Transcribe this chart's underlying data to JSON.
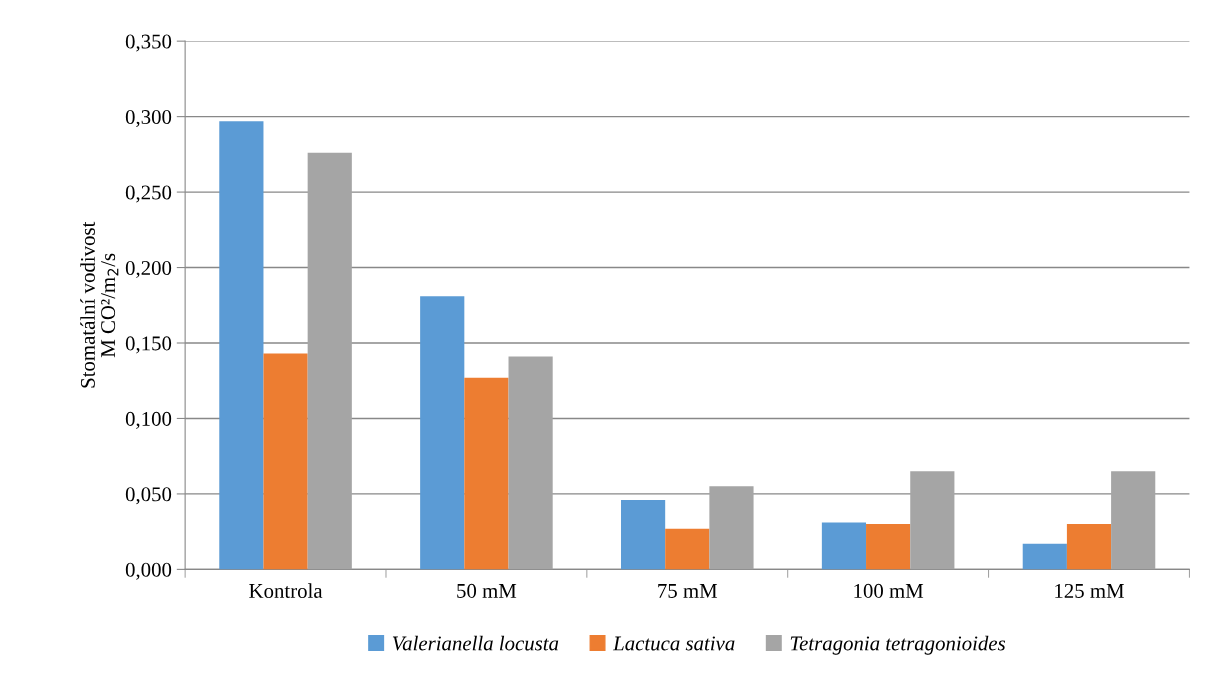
{
  "chart_data": {
    "type": "bar",
    "ylabel": "Stomatální vodivost\nM CO²/m$_{2}$/s",
    "categories": [
      "Kontrola",
      "50 mM",
      "75 mM",
      "100 mM",
      "125 mM"
    ],
    "series": [
      {
        "name": "Valerianella locusta",
        "color": "#5b9bd5",
        "values": [
          0.297,
          0.181,
          0.046,
          0.031,
          0.017
        ]
      },
      {
        "name": "Lactuca sativa",
        "color": "#ed7d31",
        "values": [
          0.143,
          0.127,
          0.027,
          0.03,
          0.03
        ]
      },
      {
        "name": "Tetragonia tetragonioides",
        "color": "#a5a5a5",
        "values": [
          0.276,
          0.141,
          0.055,
          0.065,
          0.065
        ]
      }
    ],
    "ylim": [
      0,
      0.35
    ],
    "yticks": [
      {
        "value": 0,
        "label": "0,000"
      },
      {
        "value": 0.05,
        "label": "0,050"
      },
      {
        "value": 0.1,
        "label": "0,100"
      },
      {
        "value": 0.15,
        "label": "0,150"
      },
      {
        "value": 0.2,
        "label": "0,200"
      },
      {
        "value": 0.25,
        "label": "0,250"
      },
      {
        "value": 0.3,
        "label": "0,300"
      },
      {
        "value": 0.35,
        "label": "0,350"
      }
    ],
    "grid": "y",
    "legend": "bottom"
  }
}
